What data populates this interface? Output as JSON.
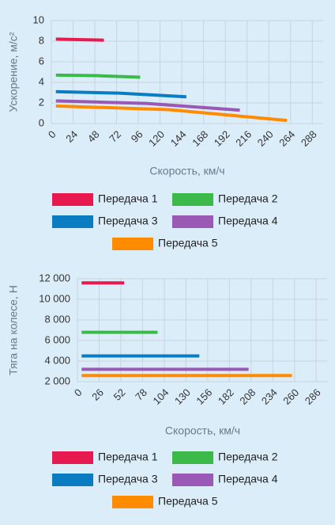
{
  "chart_data": [
    {
      "type": "line",
      "ylabel": "Ускорение, м/с²",
      "xlabel": "Скорость, км/ч",
      "xlim": [
        0,
        300
      ],
      "ylim": [
        0,
        10
      ],
      "xticks": [
        0,
        24,
        48,
        72,
        96,
        120,
        144,
        168,
        192,
        216,
        240,
        264,
        288
      ],
      "yticks": [
        0,
        2,
        4,
        6,
        8,
        10
      ],
      "grid": true,
      "legend": "bottom",
      "series": [
        {
          "name": "Передача 1",
          "color": "#e8194f",
          "x": [
            5,
            30,
            58
          ],
          "values": [
            8.2,
            8.15,
            8.1
          ]
        },
        {
          "name": "Передача 2",
          "color": "#3bba4a",
          "x": [
            5,
            50,
            98
          ],
          "values": [
            4.7,
            4.65,
            4.5
          ]
        },
        {
          "name": "Передача 3",
          "color": "#0a7dc2",
          "x": [
            5,
            75,
            149
          ],
          "values": [
            3.1,
            2.95,
            2.6
          ]
        },
        {
          "name": "Передача 4",
          "color": "#9b59b6",
          "x": [
            5,
            105,
            208
          ],
          "values": [
            2.2,
            1.95,
            1.3
          ]
        },
        {
          "name": "Передача 5",
          "color": "#ff8c00",
          "x": [
            5,
            130,
            260
          ],
          "values": [
            1.7,
            1.35,
            0.3
          ]
        }
      ]
    },
    {
      "type": "hline",
      "ylabel": "Тяга на колесе, Н",
      "xlabel": "Скорость, км/ч",
      "xlim": [
        0,
        300
      ],
      "ylim": [
        2000,
        12000
      ],
      "xticks": [
        0,
        26,
        52,
        78,
        104,
        130,
        156,
        182,
        208,
        234,
        260,
        286
      ],
      "yticks": [
        {
          "value": 2000,
          "label": "2 000"
        },
        {
          "value": 4000,
          "label": "4 000"
        },
        {
          "value": 6000,
          "label": "6 000"
        },
        {
          "value": 8000,
          "label": "8 000"
        },
        {
          "value": 10000,
          "label": "10 000"
        },
        {
          "value": 12000,
          "label": "12 000"
        }
      ],
      "grid": true,
      "legend": "bottom",
      "series": [
        {
          "name": "Передача 1",
          "color": "#e8194f",
          "x": [
            5,
            56
          ],
          "values": [
            11600,
            11600
          ]
        },
        {
          "name": "Передача 2",
          "color": "#3bba4a",
          "x": [
            5,
            96
          ],
          "values": [
            6800,
            6800
          ]
        },
        {
          "name": "Передача 3",
          "color": "#0a7dc2",
          "x": [
            5,
            146
          ],
          "values": [
            4500,
            4500
          ]
        },
        {
          "name": "Передача 4",
          "color": "#9b59b6",
          "x": [
            5,
            205
          ],
          "values": [
            3200,
            3200
          ]
        },
        {
          "name": "Передача 5",
          "color": "#ff8c00",
          "x": [
            5,
            257
          ],
          "values": [
            2600,
            2600
          ]
        }
      ]
    }
  ]
}
